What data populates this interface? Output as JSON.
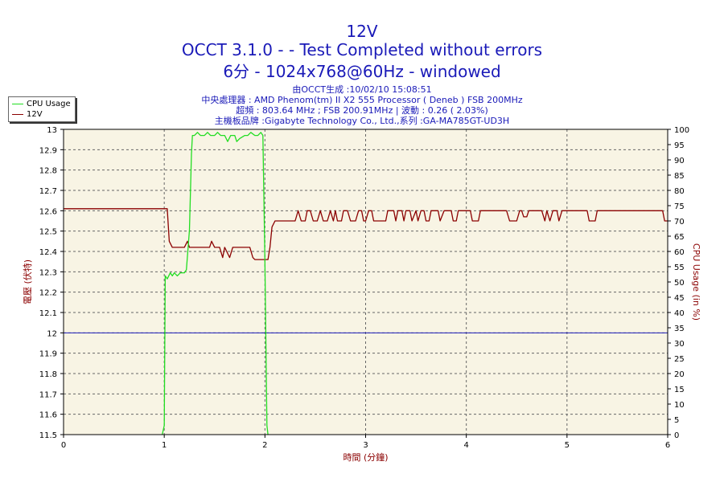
{
  "title": {
    "line1": "12V",
    "line2": "OCCT 3.1.0 -  - Test Completed without errors",
    "line3": "6分 - 1024x768@60Hz - windowed"
  },
  "info": {
    "line1": "由OCCT生成 :10/02/10 15:08:51",
    "line2": "中央處理器 : AMD Phenom(tm) II X2 555 Processor ( Deneb ) FSB 200MHz",
    "line3": "超頻 : 803.64 MHz ; FSB 200.91MHz | 波動 : 0.26 ( 2.03%)",
    "line4": "主機板品牌 :Gigabyte Technology Co., Ltd.,系列 :GA-MA785GT-UD3H"
  },
  "legend": [
    {
      "label": "CPU Usage",
      "color": "#22dd22"
    },
    {
      "label": "12V",
      "color": "#8b0000"
    }
  ],
  "chart_data": {
    "type": "line",
    "xlabel": "時間 (分鐘)",
    "ylabel_left": "電壓 (伏特)",
    "ylabel_right": "CPU Usage (in %)",
    "xlim": [
      0,
      6
    ],
    "ylim_left": [
      11.5,
      13
    ],
    "ylim_right": [
      0,
      100
    ],
    "x_ticks": [
      "0",
      "1",
      "2",
      "3",
      "4",
      "5",
      "6"
    ],
    "y_left_ticks": [
      "11.5",
      "11.6",
      "11.7",
      "11.8",
      "11.9",
      "12",
      "12.1",
      "12.2",
      "12.3",
      "12.4",
      "12.5",
      "12.6",
      "12.7",
      "12.8",
      "12.9",
      "13"
    ],
    "y_right_ticks": [
      "0",
      "5",
      "10",
      "15",
      "20",
      "25",
      "30",
      "35",
      "40",
      "45",
      "50",
      "55",
      "60",
      "65",
      "70",
      "75",
      "80",
      "85",
      "90",
      "95",
      "100"
    ],
    "grid": true,
    "background": "#f8f4e4",
    "reference_line": {
      "axis": "left",
      "value": 12,
      "color": "#1a1ab8"
    },
    "series": [
      {
        "name": "12V",
        "axis": "left",
        "color": "#8b0000",
        "points": [
          [
            0,
            12.61
          ],
          [
            1.0,
            12.61
          ],
          [
            1.03,
            12.61
          ],
          [
            1.05,
            12.45
          ],
          [
            1.08,
            12.42
          ],
          [
            1.2,
            12.42
          ],
          [
            1.23,
            12.45
          ],
          [
            1.25,
            12.42
          ],
          [
            1.45,
            12.42
          ],
          [
            1.47,
            12.45
          ],
          [
            1.5,
            12.42
          ],
          [
            1.55,
            12.42
          ],
          [
            1.58,
            12.37
          ],
          [
            1.6,
            12.42
          ],
          [
            1.65,
            12.37
          ],
          [
            1.68,
            12.42
          ],
          [
            1.75,
            12.42
          ],
          [
            1.8,
            12.42
          ],
          [
            1.85,
            12.42
          ],
          [
            1.88,
            12.37
          ],
          [
            1.9,
            12.36
          ],
          [
            1.95,
            12.36
          ],
          [
            2.0,
            12.36
          ],
          [
            2.03,
            12.36
          ],
          [
            2.05,
            12.42
          ],
          [
            2.07,
            12.52
          ],
          [
            2.1,
            12.55
          ],
          [
            2.3,
            12.55
          ],
          [
            2.33,
            12.6
          ],
          [
            2.36,
            12.55
          ],
          [
            2.4,
            12.55
          ],
          [
            2.42,
            12.6
          ],
          [
            2.45,
            12.6
          ],
          [
            2.48,
            12.55
          ],
          [
            2.52,
            12.55
          ],
          [
            2.55,
            12.6
          ],
          [
            2.58,
            12.55
          ],
          [
            2.62,
            12.55
          ],
          [
            2.65,
            12.6
          ],
          [
            2.68,
            12.55
          ],
          [
            2.7,
            12.6
          ],
          [
            2.72,
            12.55
          ],
          [
            2.76,
            12.55
          ],
          [
            2.78,
            12.6
          ],
          [
            2.82,
            12.6
          ],
          [
            2.85,
            12.55
          ],
          [
            2.9,
            12.55
          ],
          [
            2.93,
            12.6
          ],
          [
            2.96,
            12.6
          ],
          [
            2.98,
            12.55
          ],
          [
            3.0,
            12.55
          ],
          [
            3.03,
            12.6
          ],
          [
            3.06,
            12.6
          ],
          [
            3.08,
            12.55
          ],
          [
            3.1,
            12.55
          ],
          [
            3.2,
            12.55
          ],
          [
            3.22,
            12.6
          ],
          [
            3.28,
            12.6
          ],
          [
            3.3,
            12.55
          ],
          [
            3.32,
            12.6
          ],
          [
            3.36,
            12.6
          ],
          [
            3.38,
            12.55
          ],
          [
            3.4,
            12.6
          ],
          [
            3.44,
            12.6
          ],
          [
            3.46,
            12.55
          ],
          [
            3.5,
            12.6
          ],
          [
            3.52,
            12.55
          ],
          [
            3.55,
            12.6
          ],
          [
            3.58,
            12.6
          ],
          [
            3.6,
            12.55
          ],
          [
            3.63,
            12.55
          ],
          [
            3.65,
            12.6
          ],
          [
            3.72,
            12.6
          ],
          [
            3.74,
            12.55
          ],
          [
            3.78,
            12.6
          ],
          [
            3.85,
            12.6
          ],
          [
            3.87,
            12.55
          ],
          [
            3.9,
            12.55
          ],
          [
            3.92,
            12.6
          ],
          [
            3.97,
            12.6
          ],
          [
            4.0,
            12.6
          ],
          [
            4.04,
            12.6
          ],
          [
            4.06,
            12.55
          ],
          [
            4.12,
            12.55
          ],
          [
            4.14,
            12.6
          ],
          [
            4.4,
            12.6
          ],
          [
            4.43,
            12.55
          ],
          [
            4.5,
            12.55
          ],
          [
            4.53,
            12.6
          ],
          [
            4.55,
            12.6
          ],
          [
            4.57,
            12.57
          ],
          [
            4.6,
            12.57
          ],
          [
            4.62,
            12.6
          ],
          [
            4.75,
            12.6
          ],
          [
            4.78,
            12.55
          ],
          [
            4.8,
            12.6
          ],
          [
            4.83,
            12.55
          ],
          [
            4.86,
            12.6
          ],
          [
            4.9,
            12.6
          ],
          [
            4.92,
            12.55
          ],
          [
            4.95,
            12.6
          ],
          [
            5.0,
            12.6
          ],
          [
            5.2,
            12.6
          ],
          [
            5.22,
            12.55
          ],
          [
            5.28,
            12.55
          ],
          [
            5.3,
            12.6
          ],
          [
            5.95,
            12.6
          ],
          [
            5.97,
            12.55
          ],
          [
            6.0,
            12.55
          ]
        ]
      },
      {
        "name": "CPU Usage",
        "axis": "right",
        "color": "#22dd22",
        "points": [
          [
            0.98,
            0
          ],
          [
            1.0,
            3
          ],
          [
            1.01,
            52
          ],
          [
            1.03,
            51
          ],
          [
            1.06,
            53
          ],
          [
            1.08,
            52
          ],
          [
            1.1,
            53
          ],
          [
            1.13,
            52
          ],
          [
            1.16,
            53
          ],
          [
            1.2,
            53
          ],
          [
            1.22,
            54
          ],
          [
            1.25,
            67
          ],
          [
            1.27,
            92
          ],
          [
            1.28,
            98
          ],
          [
            1.3,
            98
          ],
          [
            1.33,
            99
          ],
          [
            1.36,
            98
          ],
          [
            1.4,
            98
          ],
          [
            1.43,
            99
          ],
          [
            1.46,
            98
          ],
          [
            1.5,
            98
          ],
          [
            1.53,
            99
          ],
          [
            1.56,
            98
          ],
          [
            1.6,
            98
          ],
          [
            1.63,
            96
          ],
          [
            1.66,
            98
          ],
          [
            1.7,
            98
          ],
          [
            1.72,
            96
          ],
          [
            1.75,
            97
          ],
          [
            1.8,
            98
          ],
          [
            1.83,
            98
          ],
          [
            1.86,
            99
          ],
          [
            1.9,
            98
          ],
          [
            1.93,
            98
          ],
          [
            1.96,
            99
          ],
          [
            1.98,
            98
          ],
          [
            2.0,
            57
          ],
          [
            2.02,
            3
          ],
          [
            2.03,
            0
          ]
        ]
      }
    ]
  }
}
